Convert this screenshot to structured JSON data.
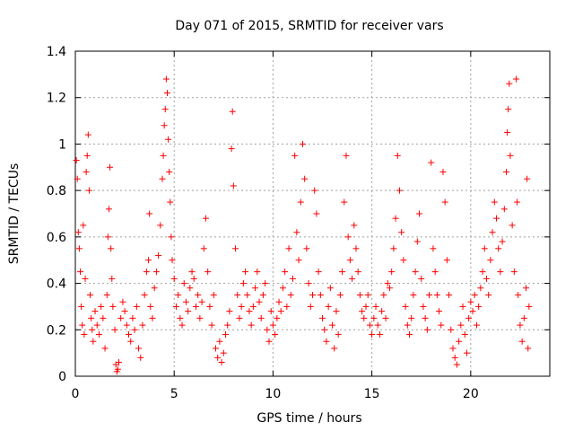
{
  "chart_data": {
    "type": "scatter",
    "title": "Day 071 of 2015, SRMTID for receiver vars",
    "xlabel": "GPS time / hours",
    "ylabel": "SRMTID / TECUs",
    "xlim": [
      0,
      24
    ],
    "ylim": [
      0,
      1.4
    ],
    "xticks": [
      0,
      5,
      10,
      15,
      20
    ],
    "yticks": [
      0,
      0.2,
      0.4,
      0.6,
      0.8,
      1,
      1.2,
      1.4
    ],
    "xtick_labels": [
      "0",
      "5",
      "10",
      "15",
      "20"
    ],
    "ytick_labels": [
      "0",
      "0.2",
      "0.4",
      "0.6",
      "0.8",
      "1",
      "1.2",
      "1.4"
    ],
    "grid": true,
    "marker": "+",
    "color": "#ff0000",
    "series": [
      {
        "name": "SRMTID",
        "points": [
          [
            0.05,
            0.93
          ],
          [
            0.1,
            0.85
          ],
          [
            0.15,
            0.62
          ],
          [
            0.2,
            0.55
          ],
          [
            0.25,
            0.45
          ],
          [
            0.3,
            0.3
          ],
          [
            0.35,
            0.22
          ],
          [
            0.4,
            0.65
          ],
          [
            0.45,
            0.18
          ],
          [
            0.5,
            0.42
          ],
          [
            0.55,
            0.88
          ],
          [
            0.6,
            0.95
          ],
          [
            0.65,
            1.04
          ],
          [
            0.7,
            0.8
          ],
          [
            0.75,
            0.35
          ],
          [
            0.8,
            0.25
          ],
          [
            0.85,
            0.2
          ],
          [
            0.9,
            0.15
          ],
          [
            1.0,
            0.28
          ],
          [
            1.1,
            0.22
          ],
          [
            1.2,
            0.18
          ],
          [
            1.3,
            0.3
          ],
          [
            1.4,
            0.25
          ],
          [
            1.5,
            0.12
          ],
          [
            1.6,
            0.35
          ],
          [
            1.65,
            0.6
          ],
          [
            1.7,
            0.72
          ],
          [
            1.75,
            0.9
          ],
          [
            1.8,
            0.55
          ],
          [
            1.85,
            0.42
          ],
          [
            1.9,
            0.3
          ],
          [
            2.0,
            0.2
          ],
          [
            2.05,
            0.05
          ],
          [
            2.1,
            0.02
          ],
          [
            2.15,
            0.03
          ],
          [
            2.2,
            0.06
          ],
          [
            2.3,
            0.25
          ],
          [
            2.4,
            0.32
          ],
          [
            2.5,
            0.28
          ],
          [
            2.6,
            0.22
          ],
          [
            2.7,
            0.18
          ],
          [
            2.8,
            0.15
          ],
          [
            2.9,
            0.25
          ],
          [
            3.0,
            0.2
          ],
          [
            3.1,
            0.3
          ],
          [
            3.2,
            0.12
          ],
          [
            3.3,
            0.08
          ],
          [
            3.4,
            0.22
          ],
          [
            3.5,
            0.35
          ],
          [
            3.6,
            0.45
          ],
          [
            3.7,
            0.5
          ],
          [
            3.75,
            0.7
          ],
          [
            3.8,
            0.3
          ],
          [
            3.9,
            0.25
          ],
          [
            4.0,
            0.38
          ],
          [
            4.1,
            0.45
          ],
          [
            4.2,
            0.52
          ],
          [
            4.3,
            0.65
          ],
          [
            4.4,
            0.85
          ],
          [
            4.45,
            0.95
          ],
          [
            4.5,
            1.08
          ],
          [
            4.55,
            1.15
          ],
          [
            4.6,
            1.28
          ],
          [
            4.65,
            1.22
          ],
          [
            4.7,
            1.02
          ],
          [
            4.75,
            0.88
          ],
          [
            4.8,
            0.75
          ],
          [
            4.85,
            0.6
          ],
          [
            4.9,
            0.5
          ],
          [
            5.0,
            0.42
          ],
          [
            5.1,
            0.3
          ],
          [
            5.2,
            0.35
          ],
          [
            5.3,
            0.25
          ],
          [
            5.4,
            0.22
          ],
          [
            5.5,
            0.4
          ],
          [
            5.6,
            0.32
          ],
          [
            5.7,
            0.28
          ],
          [
            5.8,
            0.38
          ],
          [
            5.9,
            0.45
          ],
          [
            6.0,
            0.42
          ],
          [
            6.1,
            0.3
          ],
          [
            6.2,
            0.35
          ],
          [
            6.3,
            0.25
          ],
          [
            6.4,
            0.32
          ],
          [
            6.5,
            0.55
          ],
          [
            6.6,
            0.68
          ],
          [
            6.7,
            0.45
          ],
          [
            6.8,
            0.3
          ],
          [
            6.9,
            0.22
          ],
          [
            7.0,
            0.35
          ],
          [
            7.1,
            0.12
          ],
          [
            7.2,
            0.08
          ],
          [
            7.3,
            0.15
          ],
          [
            7.4,
            0.06
          ],
          [
            7.5,
            0.1
          ],
          [
            7.6,
            0.18
          ],
          [
            7.7,
            0.22
          ],
          [
            7.8,
            0.28
          ],
          [
            7.9,
            0.98
          ],
          [
            7.95,
            1.14
          ],
          [
            8.0,
            0.82
          ],
          [
            8.1,
            0.55
          ],
          [
            8.2,
            0.35
          ],
          [
            8.3,
            0.25
          ],
          [
            8.4,
            0.3
          ],
          [
            8.5,
            0.4
          ],
          [
            8.6,
            0.45
          ],
          [
            8.7,
            0.35
          ],
          [
            8.8,
            0.28
          ],
          [
            8.9,
            0.22
          ],
          [
            9.0,
            0.3
          ],
          [
            9.1,
            0.38
          ],
          [
            9.2,
            0.45
          ],
          [
            9.3,
            0.32
          ],
          [
            9.4,
            0.25
          ],
          [
            9.5,
            0.35
          ],
          [
            9.6,
            0.4
          ],
          [
            9.7,
            0.2
          ],
          [
            9.8,
            0.15
          ],
          [
            9.9,
            0.28
          ],
          [
            10.0,
            0.22
          ],
          [
            10.1,
            0.18
          ],
          [
            10.2,
            0.25
          ],
          [
            10.3,
            0.32
          ],
          [
            10.4,
            0.28
          ],
          [
            10.5,
            0.38
          ],
          [
            10.6,
            0.45
          ],
          [
            10.7,
            0.3
          ],
          [
            10.8,
            0.55
          ],
          [
            10.9,
            0.35
          ],
          [
            11.0,
            0.42
          ],
          [
            11.1,
            0.95
          ],
          [
            11.2,
            0.62
          ],
          [
            11.3,
            0.5
          ],
          [
            11.4,
            0.75
          ],
          [
            11.5,
            1.0
          ],
          [
            11.6,
            0.85
          ],
          [
            11.7,
            0.55
          ],
          [
            11.8,
            0.4
          ],
          [
            11.9,
            0.3
          ],
          [
            12.0,
            0.35
          ],
          [
            12.1,
            0.8
          ],
          [
            12.2,
            0.7
          ],
          [
            12.3,
            0.45
          ],
          [
            12.4,
            0.35
          ],
          [
            12.5,
            0.25
          ],
          [
            12.6,
            0.2
          ],
          [
            12.7,
            0.15
          ],
          [
            12.8,
            0.3
          ],
          [
            12.9,
            0.38
          ],
          [
            13.0,
            0.22
          ],
          [
            13.1,
            0.12
          ],
          [
            13.2,
            0.28
          ],
          [
            13.3,
            0.18
          ],
          [
            13.4,
            0.35
          ],
          [
            13.5,
            0.45
          ],
          [
            13.6,
            0.75
          ],
          [
            13.7,
            0.95
          ],
          [
            13.8,
            0.6
          ],
          [
            13.9,
            0.5
          ],
          [
            14.0,
            0.42
          ],
          [
            14.1,
            0.65
          ],
          [
            14.2,
            0.55
          ],
          [
            14.3,
            0.45
          ],
          [
            14.4,
            0.35
          ],
          [
            14.5,
            0.28
          ],
          [
            14.6,
            0.25
          ],
          [
            14.7,
            0.3
          ],
          [
            14.8,
            0.35
          ],
          [
            14.9,
            0.22
          ],
          [
            15.0,
            0.18
          ],
          [
            15.1,
            0.25
          ],
          [
            15.2,
            0.3
          ],
          [
            15.3,
            0.22
          ],
          [
            15.4,
            0.18
          ],
          [
            15.5,
            0.28
          ],
          [
            15.6,
            0.35
          ],
          [
            15.7,
            0.25
          ],
          [
            15.8,
            0.4
          ],
          [
            15.9,
            0.38
          ],
          [
            16.0,
            0.45
          ],
          [
            16.1,
            0.55
          ],
          [
            16.2,
            0.68
          ],
          [
            16.3,
            0.95
          ],
          [
            16.4,
            0.8
          ],
          [
            16.5,
            0.62
          ],
          [
            16.6,
            0.5
          ],
          [
            16.7,
            0.3
          ],
          [
            16.8,
            0.22
          ],
          [
            16.9,
            0.18
          ],
          [
            17.0,
            0.25
          ],
          [
            17.1,
            0.35
          ],
          [
            17.2,
            0.45
          ],
          [
            17.3,
            0.58
          ],
          [
            17.4,
            0.7
          ],
          [
            17.5,
            0.42
          ],
          [
            17.6,
            0.3
          ],
          [
            17.7,
            0.25
          ],
          [
            17.8,
            0.2
          ],
          [
            17.9,
            0.35
          ],
          [
            18.0,
            0.92
          ],
          [
            18.1,
            0.55
          ],
          [
            18.2,
            0.45
          ],
          [
            18.3,
            0.35
          ],
          [
            18.4,
            0.28
          ],
          [
            18.5,
            0.22
          ],
          [
            18.6,
            0.88
          ],
          [
            18.7,
            0.75
          ],
          [
            18.8,
            0.5
          ],
          [
            18.9,
            0.35
          ],
          [
            19.0,
            0.2
          ],
          [
            19.1,
            0.12
          ],
          [
            19.2,
            0.08
          ],
          [
            19.3,
            0.05
          ],
          [
            19.4,
            0.15
          ],
          [
            19.5,
            0.22
          ],
          [
            19.6,
            0.3
          ],
          [
            19.7,
            0.18
          ],
          [
            19.8,
            0.1
          ],
          [
            19.9,
            0.25
          ],
          [
            20.0,
            0.32
          ],
          [
            20.1,
            0.28
          ],
          [
            20.2,
            0.35
          ],
          [
            20.3,
            0.22
          ],
          [
            20.4,
            0.3
          ],
          [
            20.5,
            0.38
          ],
          [
            20.6,
            0.45
          ],
          [
            20.7,
            0.55
          ],
          [
            20.8,
            0.42
          ],
          [
            20.9,
            0.35
          ],
          [
            21.0,
            0.5
          ],
          [
            21.1,
            0.62
          ],
          [
            21.2,
            0.75
          ],
          [
            21.3,
            0.68
          ],
          [
            21.4,
            0.55
          ],
          [
            21.5,
            0.45
          ],
          [
            21.6,
            0.58
          ],
          [
            21.7,
            0.72
          ],
          [
            21.8,
            0.88
          ],
          [
            21.85,
            1.05
          ],
          [
            21.9,
            1.15
          ],
          [
            21.95,
            1.26
          ],
          [
            22.0,
            0.95
          ],
          [
            22.1,
            0.65
          ],
          [
            22.2,
            0.45
          ],
          [
            22.3,
            1.28
          ],
          [
            22.35,
            0.75
          ],
          [
            22.4,
            0.35
          ],
          [
            22.5,
            0.22
          ],
          [
            22.6,
            0.15
          ],
          [
            22.7,
            0.25
          ],
          [
            22.8,
            0.38
          ],
          [
            22.85,
            0.85
          ],
          [
            22.9,
            0.12
          ],
          [
            22.95,
            0.3
          ]
        ]
      }
    ]
  }
}
